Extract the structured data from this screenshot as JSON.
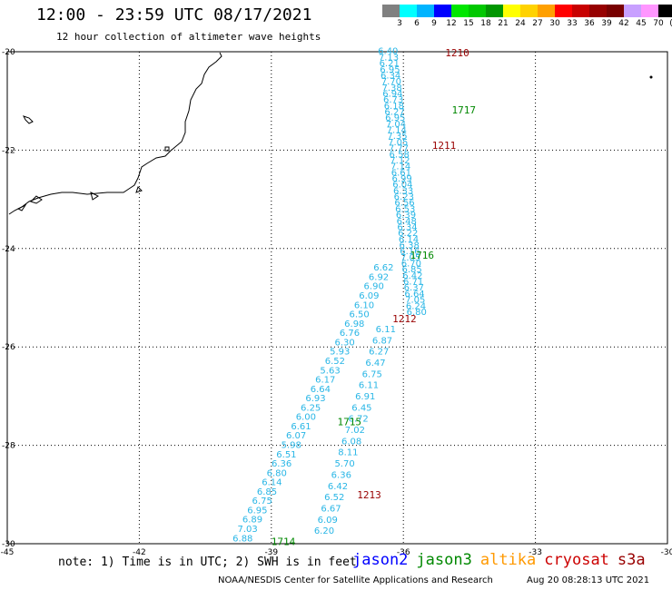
{
  "header": {
    "title": "12:00 - 23:59 UTC 08/17/2021",
    "subtitle": "12 hour collection of altimeter wave heights"
  },
  "legend": {
    "swatches": [
      {
        "color": "#808080"
      },
      {
        "color": "#00ffff"
      },
      {
        "color": "#00b4ff"
      },
      {
        "color": "#0000ff"
      },
      {
        "color": "#00e600"
      },
      {
        "color": "#00c800"
      },
      {
        "color": "#009600"
      },
      {
        "color": "#ffff00"
      },
      {
        "color": "#ffd200"
      },
      {
        "color": "#ffa000"
      },
      {
        "color": "#ff0000"
      },
      {
        "color": "#c80000"
      },
      {
        "color": "#960000"
      },
      {
        "color": "#780000"
      },
      {
        "color": "#c8a0ff"
      },
      {
        "color": "#ff96ff"
      },
      {
        "color": "#000000"
      }
    ],
    "labels": [
      "3",
      "6",
      "9",
      "12",
      "15",
      "18",
      "21",
      "24",
      "27",
      "30",
      "33",
      "36",
      "39",
      "42",
      "45",
      "70",
      "(ft)"
    ]
  },
  "axes": {
    "lon_labels": [
      "-45",
      "-42",
      "-39",
      "-36",
      "-33",
      "-30"
    ],
    "lat_labels": [
      "-20",
      "-22",
      "-24",
      "-26",
      "-28",
      "-30"
    ],
    "lon_values": [
      -45,
      -42,
      -39,
      -36,
      -33,
      -30
    ],
    "lat_values": [
      -20,
      -22,
      -24,
      -26,
      -28,
      -30
    ]
  },
  "colors": {
    "wave_text": "#29b6e6",
    "jason2": "#0000ff",
    "jason3": "#008800",
    "altika": "#ff9900",
    "cryosat": "#cc0000",
    "s3a": "#990000",
    "time_green": "#008800",
    "time_red": "#990000"
  },
  "tracks": [
    {
      "values": [
        "6.40",
        "7.13",
        "6.21",
        "6.95",
        "6.34",
        "7.70",
        "7.38",
        "6.94",
        "6.73",
        "6.18",
        "6.27",
        "6.95",
        "7.04",
        "7.14",
        "7.35",
        "7.05",
        "7.77",
        "6.58",
        "7.12",
        "7.14",
        "6.61",
        "6.99",
        "6.04",
        "6.33",
        "6.23",
        "6.56",
        "6.53",
        "6.39",
        "6.48",
        "6.34",
        "6.22",
        "6.14",
        "6.38",
        "6.16",
        "7.05",
        "6.70",
        "6.85",
        "6.42",
        "6.71",
        "6.37",
        "6.64",
        "7.05",
        "6.24",
        "6.80"
      ],
      "lon_start": -36.35,
      "lat_start": -20.05,
      "lon_end": -35.7,
      "lat_end": -25.35
    },
    {
      "values": [
        "6.11",
        "6.87",
        "6.27",
        "6.47",
        "6.75",
        "6.11",
        "6.91",
        "6.45",
        "6.72",
        "7.02",
        "6.08",
        "8.11",
        "5.70",
        "6.36",
        "6.42",
        "6.52",
        "6.67",
        "6.09",
        "6.20"
      ],
      "lon_start": -36.4,
      "lat_start": -25.7,
      "lon_end": -37.8,
      "lat_end": -29.8
    },
    {
      "values": [
        "6.62",
        "6.92",
        "6.90",
        "6.09",
        "6.10",
        "6.50",
        "6.98",
        "6.76",
        "6.30",
        "5.93",
        "6.52",
        "5.63",
        "6.17",
        "6.64",
        "6.93",
        "6.25",
        "6.00",
        "6.61",
        "6.07",
        "5.98",
        "6.51",
        "6.36",
        "6.80",
        "6.14",
        "6.85",
        "6.75",
        "6.95",
        "6.89",
        "7.03",
        "6.88"
      ],
      "lon_start": -36.45,
      "lat_start": -24.45,
      "lon_end": -39.65,
      "lat_end": -29.95
    }
  ],
  "time_labels": [
    {
      "text": "1210",
      "lon": -35.05,
      "lat": -20.02,
      "kind": "red"
    },
    {
      "text": "1717",
      "lon": -34.9,
      "lat": -21.18,
      "kind": "green"
    },
    {
      "text": "1211",
      "lon": -35.35,
      "lat": -21.9,
      "kind": "red"
    },
    {
      "text": "1716",
      "lon": -35.85,
      "lat": -24.13,
      "kind": "green"
    },
    {
      "text": "1212",
      "lon": -36.25,
      "lat": -25.42,
      "kind": "red"
    },
    {
      "text": "1715",
      "lon": -37.5,
      "lat": -27.52,
      "kind": "green"
    },
    {
      "text": "1213",
      "lon": -37.05,
      "lat": -29.0,
      "kind": "red"
    },
    {
      "text": "1714",
      "lon": -39.0,
      "lat": -29.95,
      "kind": "green"
    }
  ],
  "note": "note: 1) Time is in UTC; 2) SWH is in feet",
  "missions": {
    "jason2": "jason2",
    "jason3": "jason3",
    "altika": "altika",
    "cryosat": "cryosat",
    "s3a": "s3a"
  },
  "footer": {
    "credit": "NOAA/NESDIS Center for Satellite Applications and Research",
    "timestamp": "Aug 20 08:28:13 UTC 2021"
  }
}
